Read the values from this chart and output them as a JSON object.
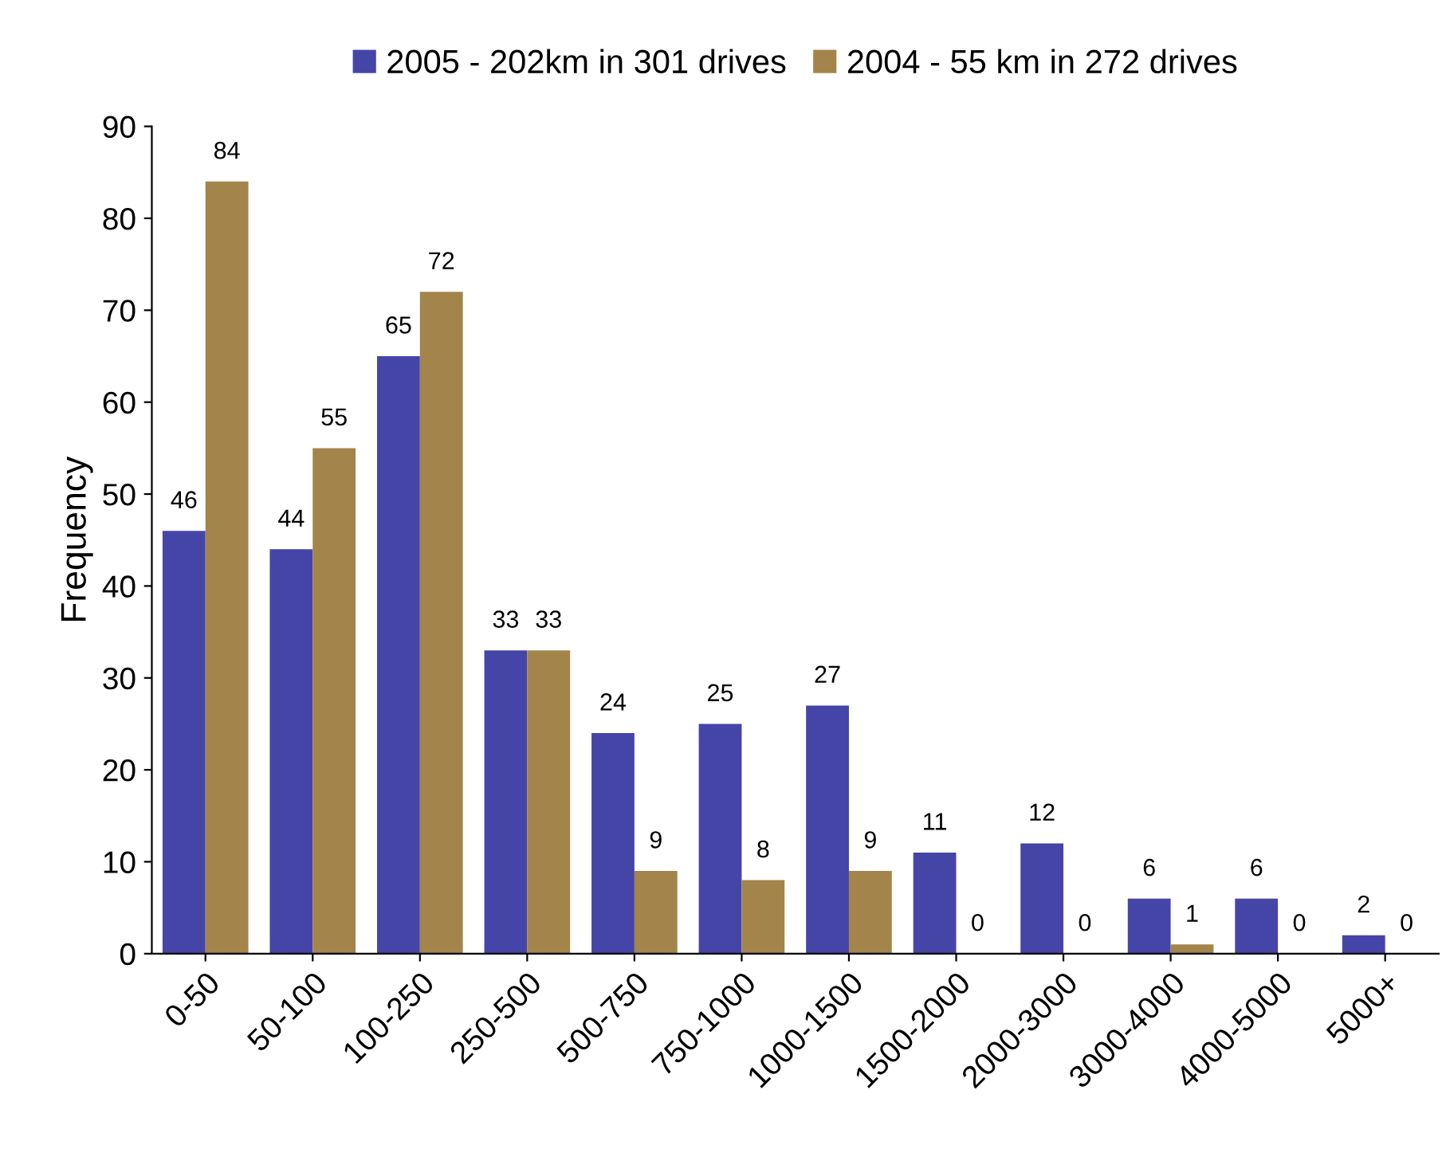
{
  "chart_data": {
    "type": "bar",
    "ylabel": "Frequency",
    "categories": [
      "0-50",
      "50-100",
      "100-250",
      "250-500",
      "500-750",
      "750-1000",
      "1000-1500",
      "1500-2000",
      "2000-3000",
      "3000-4000",
      "4000-5000",
      "5000+"
    ],
    "series": [
      {
        "name": "2005 - 202km in 301 drives",
        "color": "#4545a8",
        "values": [
          46,
          44,
          65,
          33,
          24,
          25,
          27,
          11,
          12,
          6,
          6,
          2
        ]
      },
      {
        "name": "2004 - 55 km in 272 drives",
        "color": "#a3844a",
        "values": [
          84,
          55,
          72,
          33,
          9,
          8,
          9,
          0,
          0,
          1,
          0,
          0
        ]
      }
    ],
    "ylim": [
      0,
      90
    ],
    "yticks": [
      0,
      10,
      20,
      30,
      40,
      50,
      60,
      70,
      80,
      90
    ],
    "data_labels": true,
    "grid": false,
    "legend": "top"
  }
}
